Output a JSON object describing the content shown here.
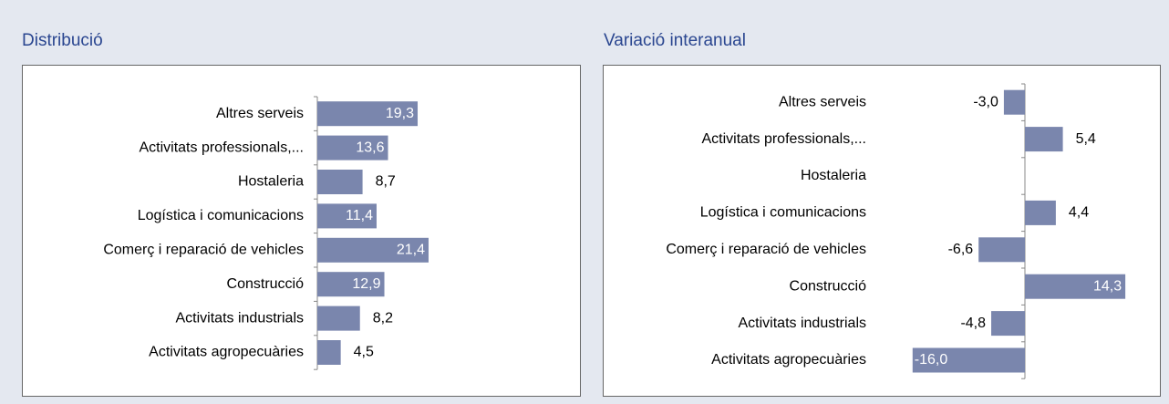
{
  "chart_data": [
    {
      "type": "bar",
      "title": "Distribució",
      "orientation": "horizontal",
      "color": "#7a86ad",
      "categories": [
        "Altres serveis",
        "Activitats professionals,...",
        "Hostaleria",
        "Logística i comunicacions",
        "Comerç i reparació de vehicles",
        "Construcció",
        "Activitats industrials",
        "Activitats agropecuàries"
      ],
      "values": [
        19.3,
        13.6,
        8.7,
        11.4,
        21.4,
        12.9,
        8.2,
        4.5
      ],
      "value_labels": [
        "19,3",
        "13,6",
        "8,7",
        "11,4",
        "21,4",
        "12,9",
        "8,2",
        "4,5"
      ]
    },
    {
      "type": "bar",
      "title": "Variació interanual",
      "orientation": "horizontal",
      "color": "#7a86ad",
      "categories": [
        "Altres serveis",
        "Activitats professionals,...",
        "Hostaleria",
        "Logística i comunicacions",
        "Comerç i reparació de vehicles",
        "Construcció",
        "Activitats industrials",
        "Activitats agropecuàries"
      ],
      "values": [
        -3.0,
        5.4,
        null,
        4.4,
        -6.6,
        14.3,
        -4.8,
        -16.0
      ],
      "value_labels": [
        "-3,0",
        "5,4",
        null,
        "4,4",
        "-6,6",
        "14,3",
        "-4,8",
        "-16,0"
      ]
    }
  ]
}
